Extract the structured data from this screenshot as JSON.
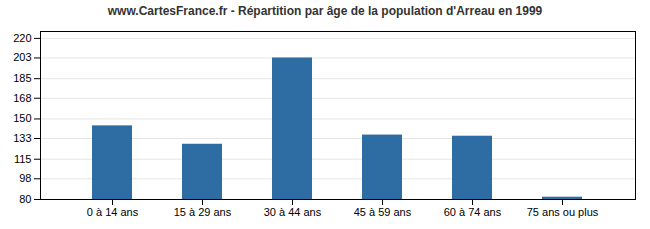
{
  "chart_data": {
    "type": "bar",
    "title": "www.CartesFrance.fr - Répartition par âge de la population d'Arreau en 1999",
    "categories": [
      "0 à 14 ans",
      "15 à 29 ans",
      "30 à 44 ans",
      "45 à 59 ans",
      "60 à 74 ans",
      "75 ans ou plus"
    ],
    "values": [
      144,
      128,
      203,
      136,
      135,
      82
    ],
    "color": "#2e6da4",
    "ylim": [
      80,
      226
    ],
    "yticks": [
      80,
      98,
      115,
      133,
      150,
      168,
      185,
      203,
      220
    ],
    "grid": true
  }
}
